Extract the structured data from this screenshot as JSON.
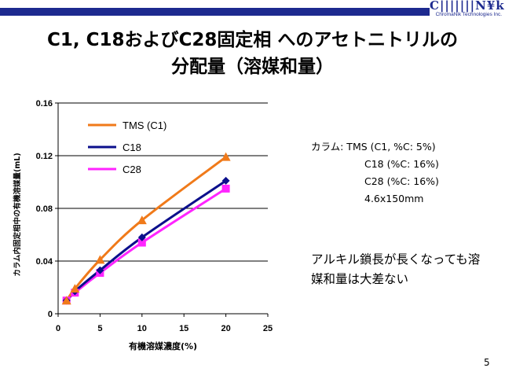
{
  "header": {
    "logo_text": "CᴴʳₒₘₐNᵢₖ",
    "logo_sub": "ChromaNik Technologies Inc."
  },
  "title": {
    "line1": "C1, C18およびC28固定相 へのアセトニトリルの",
    "line2": "分配量（溶媒和量）"
  },
  "info": {
    "line1": "カラム: TMS (C1, %C: 5%)",
    "line2": "C18 (%C: 16%)",
    "line3": "C28 (%C: 16%)",
    "line4": "4.6x150mm"
  },
  "note": {
    "line1": "アルキル鎖長が長くなっても溶",
    "line2": "媒和量は大差ない"
  },
  "page_number": "5",
  "colors": {
    "header_bar": "#1d2a8f",
    "tms": "#f07a1a",
    "c18": "#0b0f8c",
    "c28": "#ff24ff"
  },
  "chart_data": {
    "type": "line",
    "xlabel": "有機溶媒濃度(%)",
    "ylabel": "カラム内固定相中の有機溶媒量(mL)",
    "xlim": [
      0,
      25
    ],
    "ylim": [
      0,
      0.16
    ],
    "xticks": [
      "0",
      "5",
      "10",
      "15",
      "20",
      "25"
    ],
    "yticks": [
      "0",
      "0.04",
      "0.08",
      "0.12",
      "0.16"
    ],
    "grid": "horizontal",
    "legend_position": "top-left",
    "series": [
      {
        "name": "TMS (C1)",
        "color": "#f07a1a",
        "marker": "triangle",
        "x": [
          1,
          2,
          5,
          10,
          20
        ],
        "y": [
          0.01,
          0.019,
          0.041,
          0.071,
          0.119
        ]
      },
      {
        "name": "C18",
        "color": "#0b0f8c",
        "marker": "diamond",
        "x": [
          1,
          2,
          5,
          10,
          20
        ],
        "y": [
          0.01,
          0.017,
          0.033,
          0.058,
          0.101
        ]
      },
      {
        "name": "C28",
        "color": "#ff24ff",
        "marker": "square",
        "x": [
          1,
          2,
          5,
          10,
          20
        ],
        "y": [
          0.01,
          0.016,
          0.031,
          0.054,
          0.095
        ]
      }
    ]
  }
}
